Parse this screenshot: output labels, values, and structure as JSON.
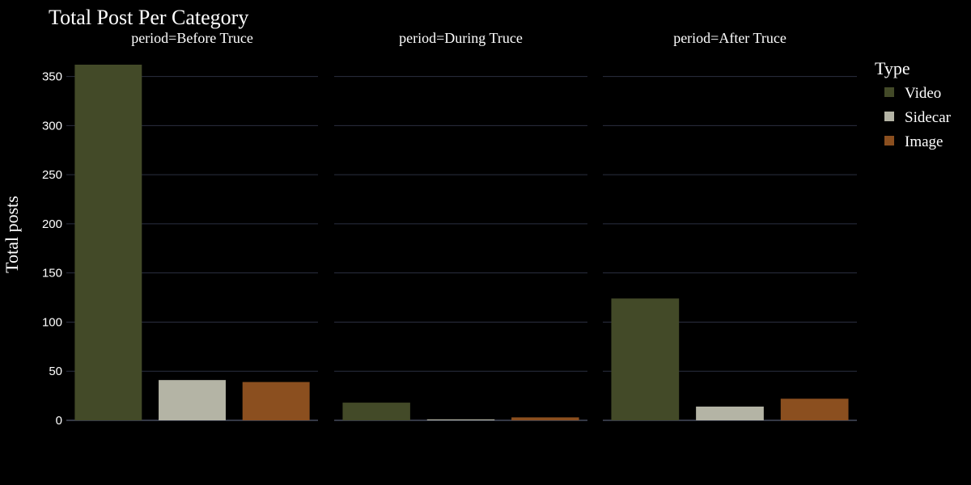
{
  "chart_data": {
    "type": "bar",
    "title": "Total Post Per Category",
    "ylabel": "Total posts",
    "xlabel": "",
    "ylim": [
      0,
      362
    ],
    "yticks": [
      0,
      50,
      100,
      150,
      200,
      250,
      300,
      350
    ],
    "grid": true,
    "legend": {
      "title": "Type",
      "placement": "right"
    },
    "categories": [
      "Video",
      "Sidecar",
      "Image"
    ],
    "colors": {
      "Video": "#434a28",
      "Sidecar": "#b4b4a5",
      "Image": "#8b4f1f"
    },
    "facets": [
      {
        "label": "period=Before Truce",
        "values": [
          362,
          41,
          39
        ]
      },
      {
        "label": "period=During Truce",
        "values": [
          18,
          1,
          3
        ]
      },
      {
        "label": "period=After Truce",
        "values": [
          124,
          14,
          22
        ]
      }
    ]
  }
}
